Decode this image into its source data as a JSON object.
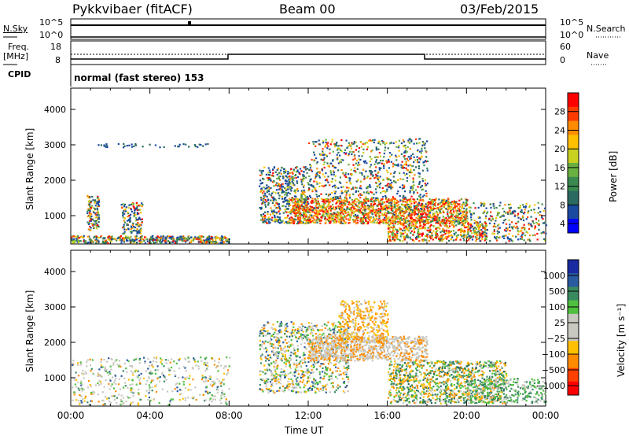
{
  "header": {
    "radar": "Pykkvibaer (fitACF)",
    "beam": "Beam 00",
    "date": "03/Feb/2015"
  },
  "strips": {
    "nsky_label": "N.Sky",
    "nsearch_label": "N.Search",
    "nsky_ticks": [
      "10^5",
      "10^0"
    ],
    "nsearch_ticks": [
      "10^5",
      "10^0"
    ],
    "freq_label_1": "Freq.",
    "freq_label_2": "[MHz]",
    "freq_ticks": [
      "18",
      "8"
    ],
    "nave_label": "Nave",
    "nave_ticks": [
      "60",
      "0"
    ],
    "cpid_label": "CPID",
    "cpid_text": "normal (fast stereo) 153"
  },
  "chart_data": [
    {
      "type": "heatmap",
      "name": "power-panel",
      "xlabel": "",
      "ylabel": "Slant Range [km]",
      "x_range_hours": [
        0,
        24
      ],
      "ylim": [
        200,
        4600
      ],
      "y_ticks": [
        "4000",
        "3000",
        "2000",
        "1000"
      ],
      "y_tick_values": [
        4000,
        3000,
        2000,
        1000
      ],
      "colorbar_label": "Power [dB]",
      "colorbar_ticks": [
        "28",
        "24",
        "20",
        "16",
        "12",
        "8",
        "4"
      ],
      "colorbar_colors": [
        "#ff0000",
        "#ff3c00",
        "#ff8c00",
        "#ffc000",
        "#c8d020",
        "#6ab040",
        "#3a8a50",
        "#2a6a60",
        "#1a4aa0",
        "#0000ff"
      ]
    },
    {
      "type": "heatmap",
      "name": "velocity-panel",
      "xlabel": "Time UT",
      "ylabel": "Slant Range [km]",
      "x_range_hours": [
        0,
        24
      ],
      "x_ticks": [
        "00:00",
        "04:00",
        "08:00",
        "12:00",
        "16:00",
        "20:00",
        "00:00"
      ],
      "x_tick_values": [
        0,
        4,
        8,
        12,
        16,
        20,
        24
      ],
      "ylim": [
        200,
        4600
      ],
      "y_ticks": [
        "4000",
        "3000",
        "2000",
        "1000"
      ],
      "y_tick_values": [
        4000,
        3000,
        2000,
        1000
      ],
      "colorbar_label": "Velocity [m s⁻¹]",
      "colorbar_ticks": [
        "1000",
        "500",
        "100",
        "25",
        "−25",
        "−100",
        "−500",
        "−1000"
      ],
      "colorbar_colors": [
        "#1a2aa0",
        "#2a5aa0",
        "#3a8a60",
        "#50c040",
        "#c8c8c0",
        "#c8c8c0",
        "#ffc000",
        "#ff8c00",
        "#ff4000",
        "#ff0000"
      ]
    }
  ]
}
